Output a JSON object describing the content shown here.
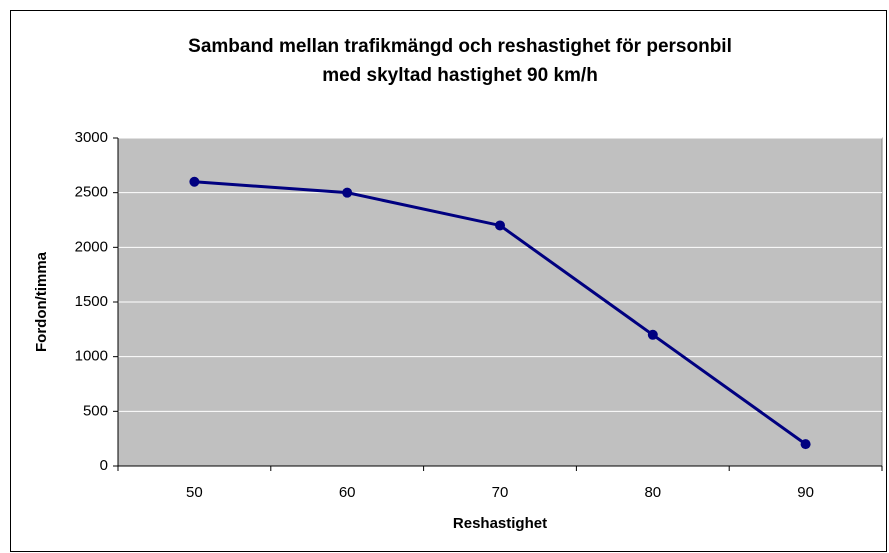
{
  "chart_data": {
    "type": "line",
    "title": [
      "Samband mellan trafikmängd och reshastighet för personbil",
      "med skyltad hastighet 90 km/h"
    ],
    "x_label": "Reshastighet",
    "y_label": "Fordon/timma",
    "categories": [
      "50",
      "60",
      "70",
      "80",
      "90"
    ],
    "series": [
      {
        "name": "Fordon/timma",
        "color": "#000080",
        "values": [
          2600,
          2500,
          2200,
          1200,
          200
        ]
      }
    ],
    "ylim": [
      0,
      3000
    ],
    "yticks": [
      0,
      500,
      1000,
      1500,
      2000,
      2500,
      3000
    ],
    "grid": true
  }
}
